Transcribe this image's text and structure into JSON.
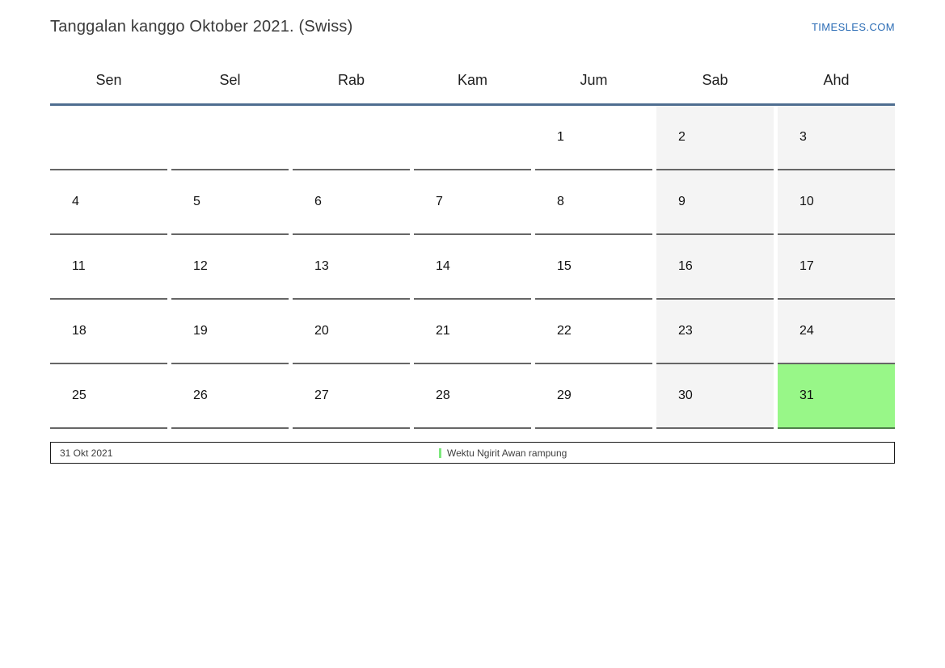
{
  "header": {
    "title": "Tanggalan kanggo Oktober 2021. (Swiss)",
    "site_link": "TIMESLES.COM"
  },
  "weekdays": [
    "Sen",
    "Sel",
    "Rab",
    "Kam",
    "Jum",
    "Sab",
    "Ahd"
  ],
  "weeks": [
    [
      "",
      "",
      "",
      "",
      "1",
      "2",
      "3"
    ],
    [
      "4",
      "5",
      "6",
      "7",
      "8",
      "9",
      "10"
    ],
    [
      "11",
      "12",
      "13",
      "14",
      "15",
      "16",
      "17"
    ],
    [
      "18",
      "19",
      "20",
      "21",
      "22",
      "23",
      "24"
    ],
    [
      "25",
      "26",
      "27",
      "28",
      "29",
      "30",
      "31"
    ]
  ],
  "highlighted_date": "31",
  "legend": {
    "date": "31 Okt 2021",
    "event": "Wektu Ngirit Awan rampung"
  },
  "colors": {
    "title-text": "#3a3a3a",
    "link-blue": "#2b6cb5",
    "header-rule": "#4e6d90",
    "cell-border": "#666666",
    "weekend-bg": "#f4f4f4",
    "highlight-green": "#98f788",
    "legend-marker": "#7de87d",
    "legend-border": "#1a1a1a"
  }
}
